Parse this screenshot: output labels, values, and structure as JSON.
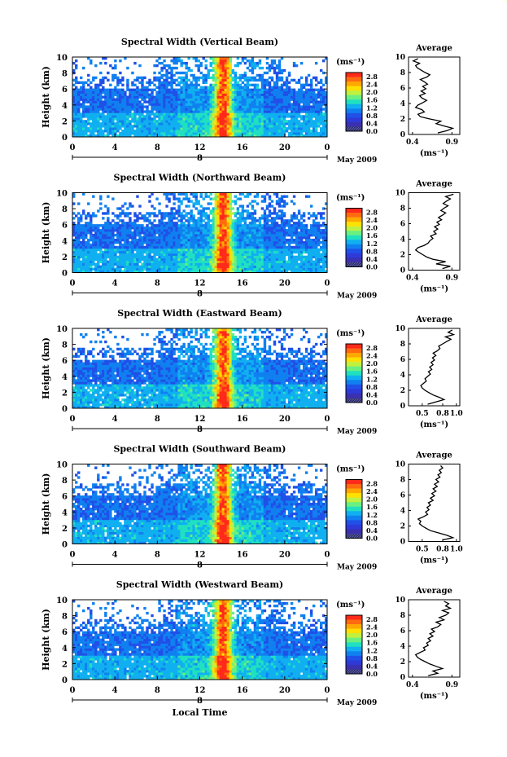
{
  "figure": {
    "colorbar_unit": "(ms⁻¹)",
    "colorbar_ticks": [
      "2.8",
      "2.4",
      "2.0",
      "1.6",
      "1.2",
      "0.8",
      "0.4",
      "0.0"
    ],
    "colorbar_colors": [
      "#ff2a1a",
      "#ff6a10",
      "#ffa800",
      "#ffe000",
      "#c0f040",
      "#6af080",
      "#20e0c0",
      "#10b0f0",
      "#1080f0",
      "#2050e8",
      "#2e3ad8",
      "#3a30b0",
      "#2a2a70"
    ],
    "average_title": "Average",
    "average_xlabel": "(ms⁻¹)",
    "x_label": "Local Time",
    "date_label": "May 2009",
    "date_marker": "8",
    "y_axis_label": "Height (km)"
  },
  "chart_data": [
    {
      "type": "heatmap",
      "title": "Spectral Width (Vertical Beam)",
      "xlabel": "",
      "ylabel": "Height (km)",
      "x_ticks": [
        "0",
        "4",
        "8",
        "12",
        "16",
        "20",
        "0"
      ],
      "xlim": [
        0,
        24
      ],
      "y_ticks": [
        "0",
        "2",
        "4",
        "6",
        "8",
        "10"
      ],
      "ylim": [
        0,
        10
      ],
      "colorbar_range": [
        0.0,
        2.8
      ],
      "average_profile": {
        "title": "Average",
        "xlabel": "(ms⁻¹)",
        "x_ticks": [
          "0.4",
          "0.9"
        ],
        "xlim": [
          0.35,
          1.0
        ],
        "height": [
          0.2,
          0.5,
          0.8,
          1.1,
          1.4,
          1.7,
          2.0,
          2.3,
          2.6,
          2.9,
          3.2,
          3.5,
          3.8,
          4.1,
          4.4,
          4.7,
          5.0,
          5.3,
          5.6,
          5.9,
          6.2,
          6.5,
          6.8,
          7.1,
          7.4,
          7.7,
          8.0,
          8.3,
          8.6,
          8.9,
          9.2,
          9.5,
          9.8
        ],
        "width": [
          0.72,
          0.84,
          0.91,
          0.8,
          0.7,
          0.76,
          0.62,
          0.5,
          0.47,
          0.55,
          0.52,
          0.44,
          0.47,
          0.53,
          0.58,
          0.52,
          0.49,
          0.56,
          0.51,
          0.57,
          0.53,
          0.59,
          0.55,
          0.5,
          0.58,
          0.62,
          0.56,
          0.51,
          0.46,
          0.44,
          0.49,
          0.41,
          0.47
        ]
      }
    },
    {
      "type": "heatmap",
      "title": "Spectral Width (Northward Beam)",
      "xlabel": "",
      "ylabel": "Height (km)",
      "x_ticks": [
        "0",
        "4",
        "8",
        "12",
        "16",
        "20",
        "0"
      ],
      "xlim": [
        0,
        24
      ],
      "y_ticks": [
        "0",
        "2",
        "4",
        "6",
        "8",
        "10"
      ],
      "ylim": [
        0,
        10
      ],
      "colorbar_range": [
        0.0,
        2.8
      ],
      "average_profile": {
        "title": "Average",
        "xlabel": "(ms⁻¹)",
        "x_ticks": [
          "0.4",
          "0.9"
        ],
        "xlim": [
          0.35,
          1.0
        ],
        "height": [
          0.2,
          0.5,
          0.8,
          1.1,
          1.4,
          1.7,
          2.0,
          2.3,
          2.6,
          2.9,
          3.2,
          3.5,
          3.8,
          4.1,
          4.4,
          4.7,
          5.0,
          5.3,
          5.6,
          5.9,
          6.2,
          6.5,
          6.8,
          7.1,
          7.4,
          7.7,
          8.0,
          8.3,
          8.6,
          8.9,
          9.2,
          9.5,
          9.8
        ],
        "width": [
          0.78,
          0.88,
          0.7,
          0.82,
          0.66,
          0.58,
          0.53,
          0.48,
          0.44,
          0.47,
          0.55,
          0.6,
          0.62,
          0.66,
          0.63,
          0.7,
          0.67,
          0.72,
          0.68,
          0.74,
          0.71,
          0.77,
          0.73,
          0.78,
          0.82,
          0.76,
          0.8,
          0.85,
          0.79,
          0.83,
          0.88,
          0.82,
          0.92
        ]
      }
    },
    {
      "type": "heatmap",
      "title": "Spectral Width (Eastward Beam)",
      "xlabel": "",
      "ylabel": "Height (km)",
      "x_ticks": [
        "0",
        "4",
        "8",
        "12",
        "16",
        "20",
        "0"
      ],
      "xlim": [
        0,
        24
      ],
      "y_ticks": [
        "0",
        "2",
        "4",
        "6",
        "8",
        "10"
      ],
      "ylim": [
        0,
        10
      ],
      "colorbar_range": [
        0.0,
        2.8
      ],
      "average_profile": {
        "title": "Average",
        "xlabel": "(ms⁻¹)",
        "x_ticks": [
          "0.5",
          "0.8",
          "1.0"
        ],
        "xlim": [
          0.3,
          1.05
        ],
        "height": [
          0.2,
          0.5,
          0.8,
          1.1,
          1.4,
          1.7,
          2.0,
          2.3,
          2.6,
          2.9,
          3.2,
          3.5,
          3.8,
          4.1,
          4.4,
          4.7,
          5.0,
          5.3,
          5.6,
          5.9,
          6.2,
          6.5,
          6.8,
          7.1,
          7.4,
          7.7,
          8.0,
          8.3,
          8.6,
          8.9,
          9.2,
          9.5,
          9.8
        ],
        "width": [
          0.58,
          0.7,
          0.82,
          0.75,
          0.66,
          0.6,
          0.54,
          0.5,
          0.48,
          0.52,
          0.56,
          0.54,
          0.58,
          0.62,
          0.59,
          0.64,
          0.61,
          0.66,
          0.63,
          0.68,
          0.65,
          0.7,
          0.66,
          0.72,
          0.76,
          0.74,
          0.8,
          0.86,
          0.92,
          0.84,
          0.96,
          0.88,
          0.94
        ]
      }
    },
    {
      "type": "heatmap",
      "title": "Spectral Width (Southward Beam)",
      "xlabel": "",
      "ylabel": "Height (km)",
      "x_ticks": [
        "0",
        "4",
        "8",
        "12",
        "16",
        "20",
        "0"
      ],
      "xlim": [
        0,
        24
      ],
      "y_ticks": [
        "0",
        "2",
        "4",
        "6",
        "8",
        "10"
      ],
      "ylim": [
        0,
        10
      ],
      "colorbar_range": [
        0.0,
        2.8
      ],
      "average_profile": {
        "title": "Average",
        "xlabel": "(ms⁻¹)",
        "x_ticks": [
          "0.5",
          "0.8",
          "1.0"
        ],
        "xlim": [
          0.3,
          1.05
        ],
        "height": [
          0.2,
          0.5,
          0.8,
          1.1,
          1.4,
          1.7,
          2.0,
          2.3,
          2.6,
          2.9,
          3.2,
          3.5,
          3.8,
          4.1,
          4.4,
          4.7,
          5.0,
          5.3,
          5.6,
          5.9,
          6.2,
          6.5,
          6.8,
          7.1,
          7.4,
          7.7,
          8.0,
          8.3,
          8.6,
          8.9,
          9.2,
          9.5,
          9.8
        ],
        "width": [
          0.8,
          0.95,
          0.86,
          0.74,
          0.62,
          0.56,
          0.5,
          0.46,
          0.48,
          0.44,
          0.52,
          0.58,
          0.55,
          0.6,
          0.57,
          0.62,
          0.59,
          0.66,
          0.62,
          0.68,
          0.64,
          0.7,
          0.66,
          0.72,
          0.68,
          0.74,
          0.7,
          0.76,
          0.73,
          0.78,
          0.75,
          0.8,
          0.77
        ]
      }
    },
    {
      "type": "heatmap",
      "title": "Spectral Width (Westward Beam)",
      "xlabel": "Local Time",
      "ylabel": "Height (km)",
      "x_ticks": [
        "0",
        "4",
        "8",
        "12",
        "16",
        "20",
        "0"
      ],
      "xlim": [
        0,
        24
      ],
      "y_ticks": [
        "0",
        "2",
        "4",
        "6",
        "8",
        "10"
      ],
      "ylim": [
        0,
        10
      ],
      "colorbar_range": [
        0.0,
        2.8
      ],
      "average_profile": {
        "title": "Average",
        "xlabel": "(ms⁻¹)",
        "x_ticks": [
          "0.4",
          "0.9"
        ],
        "xlim": [
          0.35,
          1.0
        ],
        "height": [
          0.2,
          0.5,
          0.8,
          1.1,
          1.4,
          1.7,
          2.0,
          2.3,
          2.6,
          2.9,
          3.2,
          3.5,
          3.8,
          4.1,
          4.4,
          4.7,
          5.0,
          5.3,
          5.6,
          5.9,
          6.2,
          6.5,
          6.8,
          7.1,
          7.4,
          7.7,
          8.0,
          8.3,
          8.6,
          8.9,
          9.2,
          9.5,
          9.8
        ],
        "width": [
          0.6,
          0.72,
          0.66,
          0.78,
          0.7,
          0.62,
          0.56,
          0.5,
          0.46,
          0.44,
          0.5,
          0.56,
          0.54,
          0.6,
          0.58,
          0.63,
          0.6,
          0.66,
          0.62,
          0.68,
          0.64,
          0.72,
          0.76,
          0.7,
          0.8,
          0.74,
          0.82,
          0.86,
          0.78,
          0.88,
          0.82,
          0.86,
          0.8
        ]
      }
    }
  ]
}
